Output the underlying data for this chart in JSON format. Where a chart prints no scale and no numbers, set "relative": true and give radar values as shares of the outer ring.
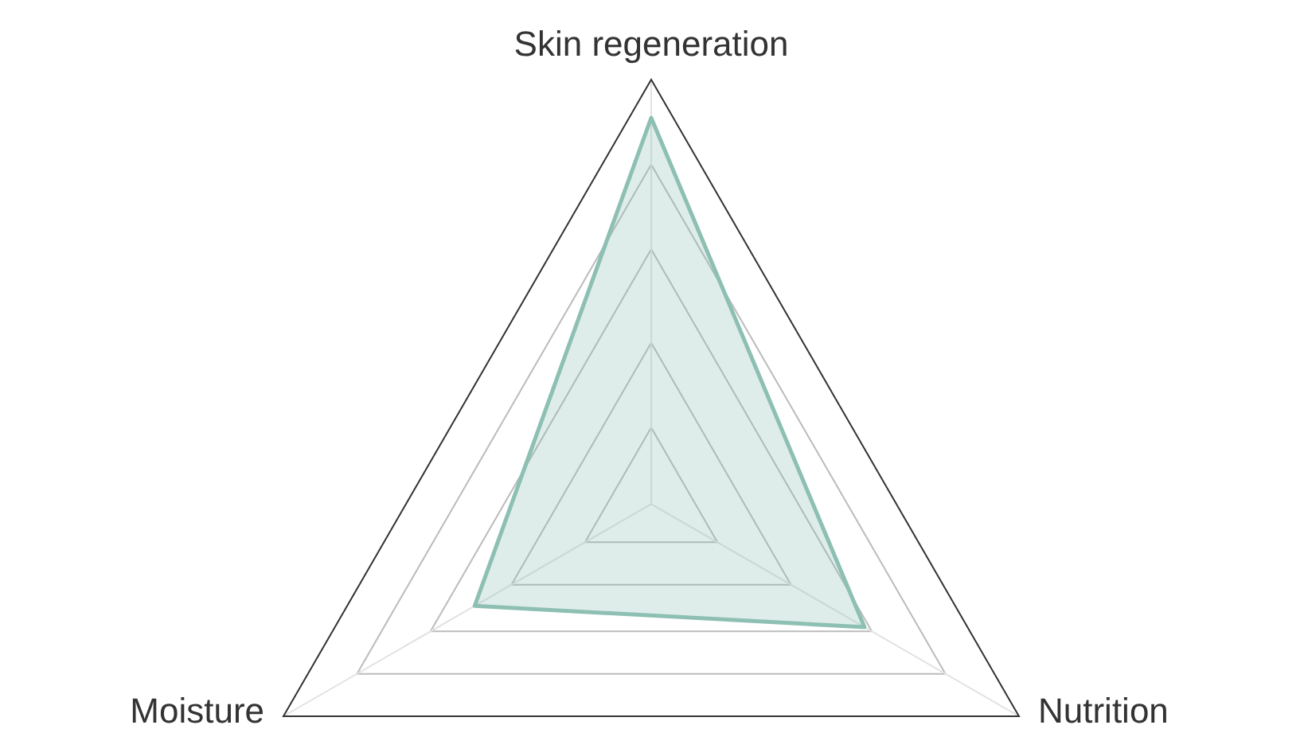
{
  "chart_data": {
    "type": "radar",
    "relative": true,
    "grid": true,
    "categories": [
      "Skin regeneration",
      "Nutrition",
      "Moisture"
    ],
    "series": [
      {
        "color": "#8dbfb2",
        "values": [
          0.91,
          0.58,
          0.48
        ]
      }
    ]
  }
}
